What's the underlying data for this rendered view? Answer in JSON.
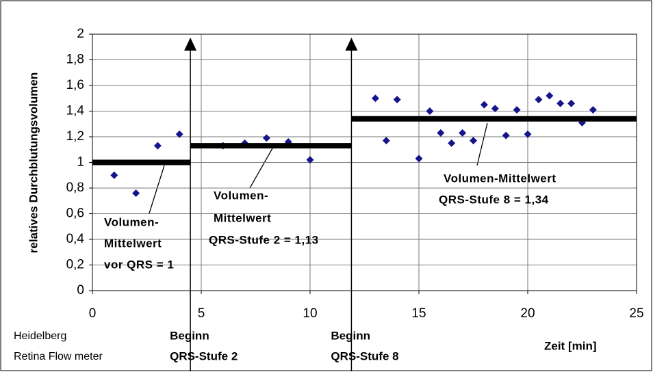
{
  "chart_data": {
    "type": "scatter",
    "ylabel": "relatives Durchblutungsvolumen",
    "xlabel": "Zeit [min]",
    "x": [
      1,
      2,
      3,
      4,
      6,
      7,
      8,
      9,
      10,
      13,
      13.5,
      14,
      15,
      15.5,
      16,
      16.5,
      17,
      17.5,
      18,
      18.5,
      19,
      19.5,
      20,
      20.5,
      21,
      21.5,
      22,
      22.5,
      23
    ],
    "values": [
      0.9,
      0.76,
      1.13,
      1.22,
      1.13,
      1.15,
      1.19,
      1.16,
      1.02,
      1.5,
      1.17,
      1.49,
      1.03,
      1.4,
      1.23,
      1.15,
      1.23,
      1.17,
      1.45,
      1.42,
      1.21,
      1.41,
      1.22,
      1.49,
      1.52,
      1.46,
      1.46,
      1.31,
      1.41
    ],
    "color": "#14148c",
    "xlim": [
      0,
      25
    ],
    "xticks": [
      0,
      5,
      10,
      15,
      20,
      25
    ],
    "ylim": [
      0,
      2
    ],
    "yticks": [
      0,
      {
        "value": 0.2,
        "label": "0,2"
      },
      {
        "value": 0.4,
        "label": "0,4"
      },
      {
        "value": 0.6,
        "label": "0,6"
      },
      {
        "value": 0.8,
        "label": "0,8"
      },
      1,
      {
        "value": 1.2,
        "label": "1,2"
      },
      {
        "value": 1.4,
        "label": "1,4"
      },
      {
        "value": 1.6,
        "label": "1,6"
      },
      {
        "value": 1.8,
        "label": "1,8"
      },
      2
    ],
    "grid": true,
    "mean_lines": [
      {
        "x": [
          0,
          4.5
        ],
        "value": 1
      },
      {
        "x": [
          4.5,
          11.9
        ],
        "value": 1.13
      },
      {
        "x": [
          11.9,
          25
        ],
        "value": 1.34
      }
    ],
    "annotations": [
      {
        "lines": [
          "Volumen-",
          "Mittelwert",
          "vor QRS = 1"
        ]
      },
      {
        "lines": [
          "Volumen-",
          "Mittelwert",
          "QRS-Stufe 2 = 1,13"
        ]
      },
      {
        "lines": [
          "Volumen-Mittelwert",
          "QRS-Stufe 8 = 1,34"
        ]
      }
    ],
    "events": [
      {
        "x": 4.5,
        "label": [
          "Beginn",
          "QRS-Stufe 2"
        ]
      },
      {
        "x": 11.9,
        "label": [
          "Beginn",
          "QRS-Stufe 8"
        ]
      }
    ],
    "source": [
      "Heidelberg",
      "Retina Flow meter"
    ]
  }
}
